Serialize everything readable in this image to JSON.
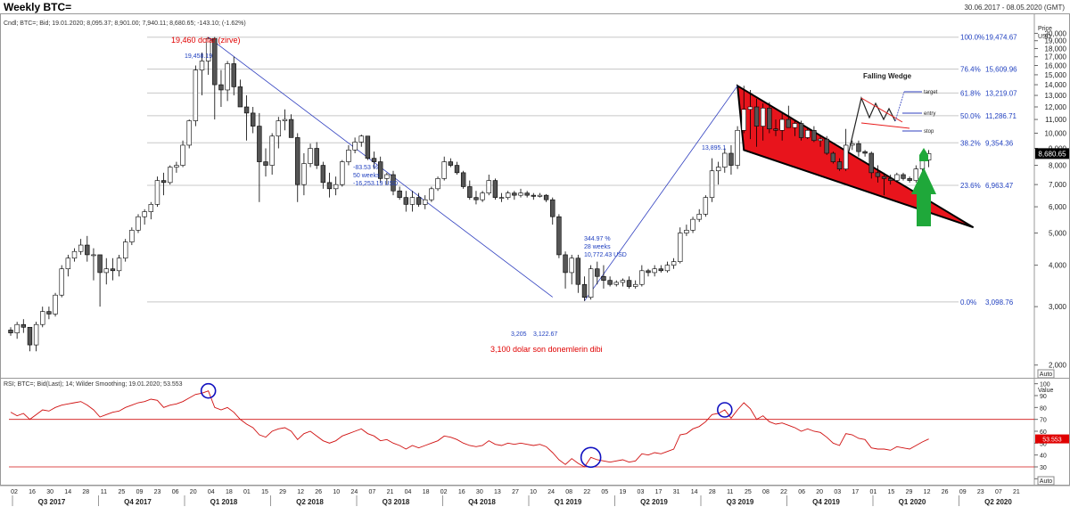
{
  "header": {
    "title": "Weekly BTC=",
    "date_range": "30.06.2017 - 08.05.2020 (GMT)"
  },
  "chart_data": [
    {
      "type": "candlestick",
      "info_line": "Cndl; BTC=; Bid; 19.01.2020; 8,095.37; 8,901.00; 7,940.11; 8,680.65; -143.10; (-1.62%)",
      "axis_title": "Price",
      "axis_unit": "USD",
      "y_scale": "log",
      "ylim": [
        1900,
        22000
      ],
      "y_ticks": [
        2000,
        3000,
        4000,
        5000,
        6000,
        7000,
        8000,
        9000,
        10000,
        11000,
        12000,
        13000,
        14000,
        15000,
        16000,
        17000,
        18000,
        19000,
        20000
      ],
      "y_tick_labels": [
        "2,000",
        "3,000",
        "4,000",
        "5,000",
        "6,000",
        "7,000",
        "8,000",
        "9,000",
        "10,000",
        "11,000",
        "12,000",
        "13,000",
        "14,000",
        "15,000",
        "16,000",
        "17,000",
        "18,000",
        "19,000",
        "20,000"
      ],
      "last_price_label": "8,680.65",
      "last_price": 8680.65,
      "auto_label": "Auto",
      "fib_levels": [
        {
          "pct": "100.0%",
          "value": 19474.67,
          "label": "19,474.67"
        },
        {
          "pct": "76.4%",
          "value": 15609.96,
          "label": "15,609.96"
        },
        {
          "pct": "61.8%",
          "value": 13219.07,
          "label": "13,219.07"
        },
        {
          "pct": "50.0%",
          "value": 11286.71,
          "label": "11,286.71"
        },
        {
          "pct": "38.2%",
          "value": 9354.36,
          "label": "9,354.36"
        },
        {
          "pct": "23.6%",
          "value": 6963.47,
          "label": "6,963.47"
        },
        {
          "pct": "0.0%",
          "value": 3098.76,
          "label": "3,098.76"
        }
      ],
      "annotations": {
        "peak_title": "19,460 dolar (zirve)",
        "peak_value": "19,458.19",
        "bottom_note": "3,100 dolar son donemlerin dibi",
        "low_1": "3,205",
        "low_2": "3,122.67",
        "high_2019": "13,895.1",
        "drop_stats": [
          "-83.53 %",
          "50 weeks",
          "-16,253.19 USD"
        ],
        "rise_stats": [
          "344.97 %",
          "28 weeks",
          "10,772.43 USD"
        ],
        "wedge_title": "Falling Wedge",
        "wedge_target": "target",
        "wedge_entry": "entry",
        "wedge_stop": "stop"
      },
      "candles": [
        [
          2550,
          2600,
          2450,
          2500
        ],
        [
          2500,
          2700,
          2400,
          2650
        ],
        [
          2650,
          2750,
          2500,
          2600
        ],
        [
          2600,
          2600,
          2200,
          2300
        ],
        [
          2300,
          2700,
          2200,
          2650
        ],
        [
          2650,
          3000,
          2600,
          2900
        ],
        [
          2900,
          3000,
          2750,
          2850
        ],
        [
          2850,
          3300,
          2800,
          3250
        ],
        [
          3250,
          4000,
          3200,
          3900
        ],
        [
          3900,
          4300,
          3700,
          4200
        ],
        [
          4200,
          4500,
          4100,
          4400
        ],
        [
          4400,
          4800,
          4300,
          4600
        ],
        [
          4600,
          4900,
          4100,
          4300
        ],
        [
          4300,
          4500,
          3600,
          4300
        ],
        [
          4300,
          4200,
          3000,
          3800
        ],
        [
          3800,
          4200,
          3500,
          3900
        ],
        [
          3900,
          4200,
          3600,
          3850
        ],
        [
          3850,
          4300,
          3700,
          4200
        ],
        [
          4200,
          4800,
          4100,
          4700
        ],
        [
          4700,
          5200,
          4600,
          5100
        ],
        [
          5100,
          5700,
          5000,
          5600
        ],
        [
          5600,
          5900,
          5300,
          5800
        ],
        [
          5800,
          6200,
          5500,
          6100
        ],
        [
          6100,
          7400,
          6000,
          7200
        ],
        [
          7200,
          7600,
          6500,
          7100
        ],
        [
          7100,
          8000,
          7000,
          7900
        ],
        [
          7900,
          8200,
          7600,
          8000
        ],
        [
          8000,
          9500,
          7900,
          9200
        ],
        [
          9200,
          11000,
          9000,
          10900
        ],
        [
          10900,
          16000,
          10500,
          15500
        ],
        [
          15500,
          17500,
          13000,
          16500
        ],
        [
          16500,
          19458,
          15000,
          19300
        ],
        [
          19300,
          19500,
          11000,
          14000
        ],
        [
          14000,
          15500,
          12000,
          13500
        ],
        [
          13500,
          16500,
          12500,
          16200
        ],
        [
          16200,
          17000,
          13000,
          13800
        ],
        [
          13800,
          14500,
          12000,
          12000
        ],
        [
          12000,
          13000,
          9500,
          11500
        ],
        [
          11500,
          12000,
          10000,
          10500
        ],
        [
          10500,
          11500,
          6200,
          8200
        ],
        [
          8200,
          9000,
          7400,
          8000
        ],
        [
          8000,
          10000,
          7500,
          9800
        ],
        [
          9800,
          11200,
          9000,
          10900
        ],
        [
          10900,
          11800,
          10200,
          11000
        ],
        [
          11000,
          11400,
          9700,
          9700
        ],
        [
          9700,
          10000,
          6200,
          7000
        ],
        [
          7000,
          8700,
          6500,
          8100
        ],
        [
          8100,
          9300,
          7900,
          9000
        ],
        [
          9000,
          9400,
          7800,
          8000
        ],
        [
          8000,
          8200,
          6800,
          7100
        ],
        [
          7100,
          7600,
          6400,
          6800
        ],
        [
          6800,
          7400,
          6500,
          7000
        ],
        [
          7000,
          8300,
          6900,
          8200
        ],
        [
          8200,
          9200,
          8000,
          8900
        ],
        [
          8900,
          9700,
          8700,
          9400
        ],
        [
          9400,
          9900,
          9100,
          9800
        ],
        [
          9800,
          9700,
          8300,
          8400
        ],
        [
          8400,
          8800,
          7800,
          8200
        ],
        [
          8200,
          8500,
          7100,
          7300
        ],
        [
          7300,
          7600,
          7000,
          7500
        ],
        [
          7500,
          7700,
          6500,
          6700
        ],
        [
          6700,
          6900,
          6300,
          6400
        ],
        [
          6400,
          6700,
          5800,
          6100
        ],
        [
          6100,
          6700,
          5800,
          6400
        ],
        [
          6400,
          6600,
          6000,
          6100
        ],
        [
          6100,
          6500,
          5900,
          6300
        ],
        [
          6300,
          6900,
          6200,
          6800
        ],
        [
          6800,
          7400,
          6700,
          7300
        ],
        [
          7300,
          8500,
          7200,
          8200
        ],
        [
          8200,
          8400,
          7900,
          8000
        ],
        [
          8000,
          8200,
          7500,
          7600
        ],
        [
          7600,
          7700,
          6800,
          6900
        ],
        [
          6900,
          7200,
          6300,
          6400
        ],
        [
          6400,
          6700,
          6100,
          6300
        ],
        [
          6300,
          6700,
          6200,
          6600
        ],
        [
          6600,
          7500,
          6500,
          7200
        ],
        [
          7200,
          7300,
          6300,
          6400
        ],
        [
          6400,
          6600,
          6200,
          6400
        ],
        [
          6400,
          6700,
          6300,
          6600
        ],
        [
          6600,
          6700,
          6300,
          6500
        ],
        [
          6500,
          6800,
          6400,
          6600
        ],
        [
          6600,
          6700,
          6400,
          6500
        ],
        [
          6500,
          6600,
          6300,
          6450
        ],
        [
          6450,
          6600,
          6400,
          6500
        ],
        [
          6500,
          6550,
          6200,
          6300
        ],
        [
          6300,
          6400,
          5300,
          5600
        ],
        [
          5600,
          5700,
          4200,
          4300
        ],
        [
          4300,
          4400,
          3400,
          3800
        ],
        [
          3800,
          4300,
          3500,
          4200
        ],
        [
          4200,
          4300,
          3300,
          3500
        ],
        [
          3500,
          3700,
          3122,
          3200
        ],
        [
          3200,
          4000,
          3150,
          3900
        ],
        [
          3900,
          4100,
          3500,
          3700
        ],
        [
          3700,
          4000,
          3400,
          3600
        ],
        [
          3600,
          3700,
          3450,
          3500
        ],
        [
          3500,
          3600,
          3450,
          3550
        ],
        [
          3550,
          3650,
          3450,
          3600
        ],
        [
          3600,
          3700,
          3400,
          3450
        ],
        [
          3450,
          3600,
          3400,
          3500
        ],
        [
          3500,
          4000,
          3450,
          3850
        ],
        [
          3850,
          3900,
          3700,
          3800
        ],
        [
          3800,
          4000,
          3700,
          3900
        ],
        [
          3900,
          4000,
          3800,
          3850
        ],
        [
          3850,
          4100,
          3800,
          4000
        ],
        [
          4000,
          4200,
          3900,
          4100
        ],
        [
          4100,
          5200,
          4050,
          5000
        ],
        [
          5000,
          5300,
          4900,
          5100
        ],
        [
          5100,
          5600,
          5000,
          5500
        ],
        [
          5500,
          5900,
          5400,
          5700
        ],
        [
          5700,
          6500,
          5600,
          6400
        ],
        [
          6400,
          8400,
          6200,
          7700
        ],
        [
          7700,
          8200,
          7000,
          7900
        ],
        [
          7900,
          9000,
          7600,
          8700
        ],
        [
          8700,
          9200,
          7500,
          8000
        ],
        [
          8000,
          10500,
          7800,
          10200
        ],
        [
          10200,
          13895,
          10000,
          11800
        ],
        [
          11800,
          13500,
          9600,
          12000
        ],
        [
          12000,
          12700,
          9100,
          10500
        ],
        [
          10500,
          12300,
          9500,
          11900
        ],
        [
          11900,
          12400,
          10000,
          10300
        ],
        [
          10300,
          11000,
          9800,
          10200
        ],
        [
          10200,
          11500,
          9500,
          11000
        ],
        [
          11000,
          12100,
          10500,
          10400
        ],
        [
          10400,
          10900,
          9800,
          10700
        ],
        [
          10700,
          10900,
          9500,
          9700
        ],
        [
          9700,
          10400,
          9600,
          10200
        ],
        [
          10200,
          10500,
          9400,
          9500
        ],
        [
          9500,
          9800,
          9100,
          9600
        ],
        [
          9600,
          9800,
          8600,
          8700
        ],
        [
          8700,
          8800,
          8100,
          8200
        ],
        [
          8200,
          8400,
          7700,
          7800
        ],
        [
          7800,
          10300,
          7700,
          9200
        ],
        [
          9200,
          9500,
          8900,
          9300
        ],
        [
          9300,
          9500,
          8500,
          8800
        ],
        [
          8800,
          8900,
          8500,
          8700
        ],
        [
          8700,
          8800,
          7300,
          7600
        ],
        [
          7600,
          8000,
          7100,
          7400
        ],
        [
          7400,
          7600,
          6500,
          7300
        ],
        [
          7300,
          7500,
          7000,
          7200
        ],
        [
          7200,
          7600,
          7100,
          7500
        ],
        [
          7500,
          7600,
          7200,
          7300
        ],
        [
          7300,
          7400,
          7100,
          7200
        ],
        [
          7200,
          8000,
          7100,
          7800
        ],
        [
          7800,
          8400,
          7700,
          8300
        ],
        [
          8300,
          8900,
          7900,
          8680
        ]
      ]
    },
    {
      "type": "line",
      "info_line": "RSI; BTC=; Bid(Last); 14; Wilder Smoothing; 19.01.2020; 53.553",
      "axis_title": "Value",
      "ylim": [
        18,
        102
      ],
      "y_ticks": [
        20,
        30,
        40,
        50,
        60,
        70,
        80,
        90,
        100
      ],
      "y_tick_labels": [
        "20",
        "30",
        "40",
        "50",
        "60",
        "70",
        "80",
        "90",
        "100"
      ],
      "overbought": 70,
      "oversold": 30,
      "last_value_label": "53.553",
      "last_value": 53.553,
      "auto_label": "Auto",
      "values": [
        76,
        73,
        75,
        70,
        74,
        78,
        77,
        80,
        82,
        83,
        84,
        85,
        82,
        78,
        72,
        74,
        76,
        77,
        80,
        82,
        84,
        85,
        87,
        86,
        80,
        82,
        83,
        85,
        88,
        91,
        92,
        94,
        80,
        78,
        80,
        76,
        70,
        66,
        63,
        57,
        55,
        60,
        62,
        63,
        60,
        53,
        58,
        60,
        56,
        52,
        50,
        52,
        56,
        58,
        60,
        62,
        58,
        56,
        52,
        53,
        50,
        48,
        45,
        48,
        46,
        48,
        50,
        52,
        56,
        55,
        53,
        50,
        48,
        47,
        48,
        52,
        49,
        48,
        50,
        49,
        50,
        49,
        48,
        49,
        47,
        42,
        36,
        32,
        37,
        33,
        30,
        38,
        36,
        35,
        34,
        35,
        36,
        34,
        35,
        41,
        40,
        42,
        41,
        43,
        45,
        57,
        58,
        62,
        64,
        68,
        74,
        75,
        78,
        71,
        78,
        84,
        79,
        70,
        73,
        68,
        66,
        67,
        65,
        63,
        60,
        62,
        60,
        59,
        55,
        50,
        48,
        58,
        57,
        54,
        53,
        46,
        45,
        45,
        44,
        47,
        46,
        45,
        48,
        51,
        53.5
      ],
      "markers": [
        31,
        91,
        112
      ]
    }
  ],
  "x_axis": {
    "weeks": [
      "02",
      "16",
      "30",
      "14",
      "28",
      "11",
      "25",
      "09",
      "23",
      "06",
      "20",
      "04",
      "18",
      "01",
      "15",
      "29",
      "12",
      "26",
      "10",
      "24",
      "07",
      "21",
      "04",
      "18",
      "02",
      "16",
      "30",
      "13",
      "27",
      "10",
      "24",
      "08",
      "22",
      "05",
      "19",
      "03",
      "17",
      "31",
      "14",
      "28",
      "11",
      "25",
      "08",
      "22",
      "06",
      "20",
      "03",
      "17",
      "01",
      "15",
      "29",
      "12",
      "26",
      "09",
      "23",
      "07",
      "21"
    ],
    "quarters": [
      "Q3 2017",
      "Q4 2017",
      "Q1 2018",
      "Q2 2018",
      "Q3 2018",
      "Q4 2018",
      "Q1 2019",
      "Q2 2019",
      "Q3 2019",
      "Q4 2019",
      "Q1 2020",
      "Q2 2020"
    ]
  }
}
